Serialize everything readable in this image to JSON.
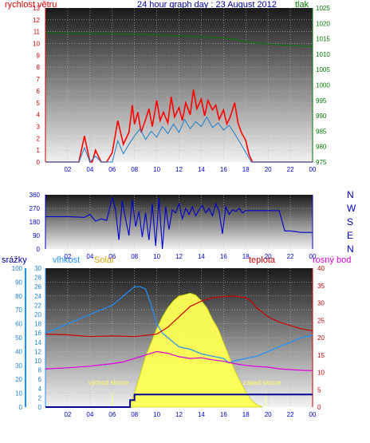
{
  "header": {
    "title": "24 hour graph day : 23 August 2012",
    "left_label": "rychlost větru",
    "right_label": "tlak"
  },
  "colors": {
    "wind_speed": "#ff0000",
    "wind_gust": "#1e7fc8",
    "pressure": "#007700",
    "direction": "#0000cc",
    "rain": "#000099",
    "humidity": "#1e90ff",
    "solar": "#ffff55",
    "temperature": "#cc0000",
    "dewpoint": "#dd00dd",
    "title": "#0000aa",
    "axis_label": "#0000cc"
  },
  "chart_data": [
    {
      "type": "line",
      "panel": "wind_pressure",
      "title": "24 hour graph day : 23 August 2012",
      "x_ticks": [
        "02",
        "04",
        "06",
        "08",
        "10",
        "12",
        "14",
        "16",
        "18",
        "20",
        "22",
        "00"
      ],
      "y_left": {
        "label": "rychlost větru",
        "ticks": [
          0,
          1,
          2,
          3,
          4,
          5,
          6,
          7,
          8,
          9,
          10,
          11,
          12,
          13
        ],
        "ylim": [
          0,
          13
        ]
      },
      "y_right": {
        "label": "tlak",
        "ticks": [
          975,
          980,
          985,
          990,
          995,
          1000,
          1005,
          1010,
          1015,
          1020,
          1025
        ],
        "ylim": [
          975,
          1025
        ]
      },
      "series": [
        {
          "key": "wind",
          "color_key": "wind_speed",
          "axis": "left",
          "x": [
            0,
            2,
            3,
            3.5,
            4,
            4.2,
            4.5,
            5,
            5.5,
            6,
            6.5,
            7,
            7.5,
            7.8,
            8,
            8.3,
            8.6,
            9,
            9.3,
            9.6,
            10,
            10.3,
            10.6,
            11,
            11.3,
            11.6,
            12,
            12.3,
            12.6,
            13,
            13.3,
            13.6,
            14,
            14.3,
            14.6,
            15,
            15.3,
            15.6,
            16,
            16.3,
            16.6,
            17,
            17.3,
            17.6,
            18,
            18.3,
            18.6,
            19,
            20,
            22,
            24
          ],
          "values": [
            0,
            0,
            0,
            2.2,
            0,
            0,
            1.0,
            0,
            0,
            0.8,
            3.5,
            1.5,
            2.5,
            4.8,
            3.2,
            4.2,
            2.5,
            3.6,
            4.5,
            3.0,
            5.2,
            3.5,
            4.2,
            3.3,
            5.5,
            3.8,
            4.6,
            3.5,
            5.0,
            4.0,
            6.1,
            4.5,
            5.3,
            3.9,
            5.2,
            4.4,
            4.8,
            3.6,
            4.4,
            3.2,
            3.8,
            5.0,
            3.3,
            2.5,
            1.8,
            0.6,
            0,
            0,
            0,
            0,
            0
          ]
        },
        {
          "key": "gust",
          "color_key": "wind_gust",
          "axis": "left",
          "x": [
            0,
            3,
            3.5,
            4,
            4.5,
            5,
            6,
            6.5,
            7,
            7.5,
            8,
            8.5,
            9,
            9.5,
            10,
            10.5,
            11,
            11.5,
            12,
            12.5,
            13,
            13.5,
            14,
            14.5,
            15,
            15.5,
            16,
            16.5,
            17,
            17.5,
            18,
            18.5,
            19,
            24
          ],
          "values": [
            0,
            0,
            1.2,
            0,
            0.5,
            0,
            0,
            1.8,
            0.7,
            1.5,
            2.2,
            2.8,
            1.9,
            2.6,
            2.1,
            3.0,
            2.4,
            3.2,
            2.5,
            3.6,
            2.8,
            3.4,
            3.0,
            3.8,
            2.9,
            3.3,
            2.7,
            3.1,
            2.4,
            1.6,
            0.8,
            0,
            0,
            0
          ]
        },
        {
          "key": "pressure",
          "color_key": "pressure",
          "axis": "right",
          "x": [
            0,
            2,
            4,
            6,
            8,
            10,
            12,
            14,
            16,
            17,
            18,
            20,
            22,
            24
          ],
          "values": [
            1017,
            1016.8,
            1016.8,
            1016.7,
            1016.5,
            1016.3,
            1016.0,
            1015.6,
            1015.2,
            1014.8,
            1014.0,
            1013.3,
            1012.8,
            1012.5
          ]
        }
      ]
    },
    {
      "type": "line",
      "panel": "wind_direction",
      "x_ticks": [
        "02",
        "04",
        "06",
        "08",
        "10",
        "12",
        "14",
        "16",
        "18",
        "20",
        "22",
        "00"
      ],
      "y_left": {
        "ticks": [
          0,
          90,
          180,
          270,
          360
        ],
        "ylim": [
          0,
          360
        ]
      },
      "y_right_labels": [
        "N",
        "W",
        "S",
        "E",
        "N"
      ],
      "series": [
        {
          "key": "direction",
          "color_key": "direction",
          "x": [
            0,
            2,
            3.5,
            4,
            4.5,
            5,
            5.5,
            6,
            6.3,
            6.6,
            6.9,
            7.2,
            7.5,
            7.8,
            8.1,
            8.4,
            8.7,
            9,
            9.3,
            9.6,
            9.9,
            10.2,
            10.5,
            10.8,
            11.1,
            11.4,
            11.7,
            12,
            12.3,
            12.6,
            12.9,
            13.2,
            13.5,
            13.8,
            14.1,
            14.4,
            14.7,
            15,
            15.3,
            15.6,
            15.9,
            16.2,
            16.5,
            16.8,
            17.1,
            17.4,
            17.7,
            18,
            19,
            20,
            21,
            21.5,
            22,
            23,
            24
          ],
          "values": [
            215,
            215,
            210,
            230,
            185,
            200,
            190,
            340,
            260,
            60,
            320,
            200,
            90,
            330,
            150,
            250,
            80,
            240,
            60,
            300,
            20,
            340,
            0,
            280,
            130,
            260,
            240,
            300,
            200,
            270,
            230,
            280,
            220,
            260,
            290,
            240,
            270,
            220,
            300,
            250,
            100,
            280,
            230,
            260,
            250,
            270,
            240,
            255,
            255,
            255,
            255,
            120,
            120,
            110,
            110
          ]
        }
      ]
    },
    {
      "type": "line",
      "panel": "rain_humidity_solar_temp",
      "legend": [
        "srážky",
        "vlhkost",
        "Solar",
        "teplota",
        "rosný bod"
      ],
      "x_ticks": [
        "02",
        "04",
        "06",
        "08",
        "10",
        "12",
        "14",
        "16",
        "18",
        "20",
        "22",
        "00"
      ],
      "y_axes": {
        "srazky": {
          "ticks": [
            0,
            10,
            20,
            30,
            40,
            50,
            60,
            70,
            80,
            90,
            100
          ],
          "ylim": [
            0,
            100
          ]
        },
        "vlhkost": {
          "ticks": [
            0,
            2,
            4,
            6,
            8,
            10,
            12,
            14,
            16,
            18,
            20,
            22,
            24,
            26,
            28,
            30
          ],
          "ylim": [
            0,
            30
          ]
        },
        "teplota": {
          "ticks": [
            0,
            5,
            10,
            15,
            20,
            25,
            30,
            35,
            40
          ],
          "ylim": [
            0,
            40
          ]
        }
      },
      "annotations": [
        {
          "text": "východ slunce",
          "x": 6
        },
        {
          "text": "západ slunce",
          "x": 19.8
        }
      ],
      "series": [
        {
          "key": "solar",
          "color_key": "solar",
          "axis": "vlhkost",
          "x": [
            7.5,
            8,
            8.5,
            9,
            9.5,
            10,
            10.5,
            11,
            11.5,
            12,
            12.5,
            13,
            13.5,
            14,
            14.5,
            15,
            15.5,
            16,
            16.5,
            17,
            17.5,
            18,
            18.5,
            19,
            19.5
          ],
          "values": [
            0,
            3,
            7,
            11,
            14,
            17,
            19.5,
            21.5,
            23,
            24,
            24.3,
            24.6,
            24.2,
            23,
            21.5,
            19,
            17,
            14,
            11,
            8,
            5.5,
            3.3,
            1.5,
            0.5,
            0
          ]
        },
        {
          "key": "humidity",
          "color_key": "humidity",
          "axis": "vlhkost",
          "x": [
            0,
            1,
            2,
            3,
            4,
            5,
            6,
            7,
            7.5,
            8,
            8.5,
            9,
            9.5,
            10,
            10.5,
            11,
            11.5,
            12,
            13,
            14,
            15,
            16,
            16.5,
            17,
            18,
            19,
            20,
            21,
            22,
            23,
            24
          ],
          "values": [
            16,
            17,
            18,
            19,
            20,
            21,
            22,
            24,
            25,
            26,
            26,
            25.5,
            22,
            18,
            16,
            15,
            14,
            13,
            12.5,
            11.5,
            11,
            10.5,
            9.5,
            10,
            10.5,
            11,
            12,
            13,
            14,
            15,
            15.5
          ]
        },
        {
          "key": "temperature",
          "color_key": "temperature",
          "axis": "teplota",
          "x": [
            0,
            2,
            4,
            6,
            8,
            10,
            11,
            12,
            13,
            14,
            15,
            16,
            17,
            18,
            18.5,
            19,
            20,
            21,
            22,
            23,
            24
          ],
          "values": [
            21,
            20.8,
            20.3,
            20.5,
            20.3,
            21,
            23,
            26,
            29,
            30.5,
            31.5,
            31.8,
            32,
            31.5,
            30.5,
            28.5,
            26,
            24.5,
            23.5,
            22.5,
            22
          ]
        },
        {
          "key": "dewpoint",
          "color_key": "dewpoint",
          "axis": "teplota",
          "x": [
            0,
            2,
            4,
            6,
            7,
            8,
            9,
            10,
            11,
            12,
            13,
            14,
            15,
            16,
            17,
            18,
            19,
            20,
            21,
            22,
            23,
            24
          ],
          "values": [
            11,
            11.3,
            11.8,
            12.5,
            13,
            14,
            15,
            16,
            15.5,
            14.5,
            14,
            14.2,
            13.6,
            13.2,
            12.5,
            12,
            11.7,
            11.5,
            11,
            10.8,
            10.6,
            10.5
          ]
        },
        {
          "key": "rain",
          "color_key": "rain",
          "axis": "srazky",
          "x": [
            0,
            7.2,
            7.6,
            8,
            9,
            10,
            12,
            14,
            16,
            18,
            20,
            22,
            23.5,
            24
          ],
          "values": [
            0,
            0,
            5,
            9,
            9,
            9,
            9,
            9,
            9,
            9,
            9,
            9,
            9,
            9
          ]
        }
      ]
    }
  ],
  "bottom_panel": {
    "left_labels": [
      "srážky",
      "vlhkost",
      "Solar"
    ],
    "right_labels": [
      "teplota",
      "rosný bod"
    ],
    "sunrise_label": "východ slunce",
    "sunset_label": "západ slunce"
  },
  "direction_compass": [
    "N",
    "W",
    "S",
    "E",
    "N"
  ]
}
